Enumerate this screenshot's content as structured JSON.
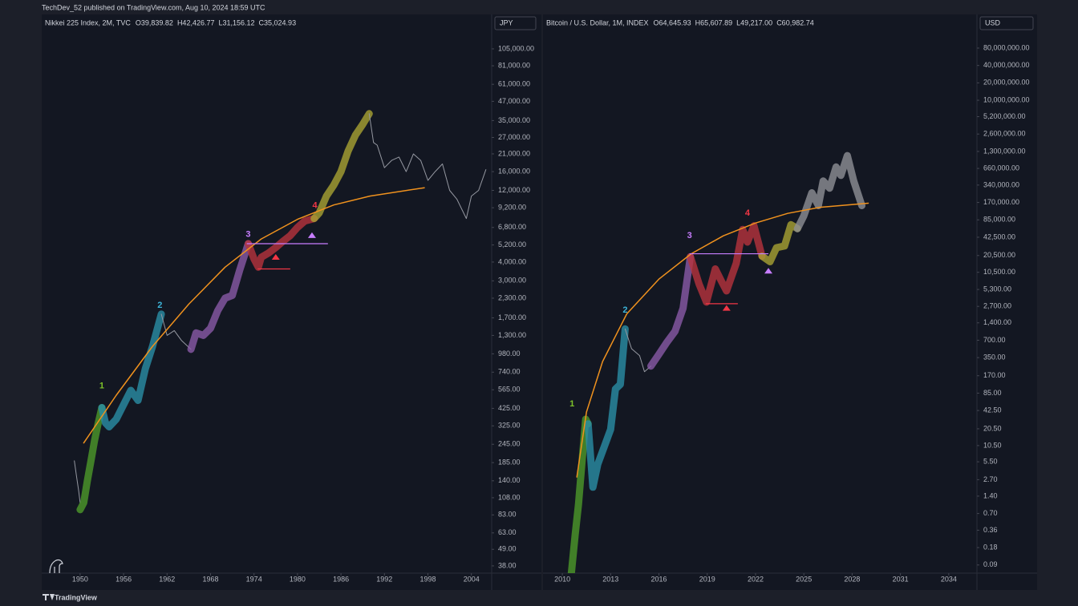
{
  "header": "TechDev_52 published on TradingView.com, Aug 10, 2024 18:59 UTC",
  "footer": "TradingView",
  "chart_data": [
    {
      "type": "line",
      "title": "Nikkei 225 Index, 2M, TVC",
      "ohlc": [
        "O39,839.82",
        "H42,426.77",
        "L31,156.12",
        "C35,024.93"
      ],
      "currency": "JPY",
      "log_scale": true,
      "xlim": [
        1944.7,
        2006.8
      ],
      "xticks": [
        1950,
        1956,
        1962,
        1968,
        1974,
        1980,
        1986,
        1992,
        1998,
        2004
      ],
      "ylim": [
        34,
        178000
      ],
      "yticks": [
        {
          "value": 105000,
          "label": "105,000.00"
        },
        {
          "value": 81000,
          "label": "81,000.00"
        },
        {
          "value": 61000,
          "label": "61,000.00"
        },
        {
          "value": 47000,
          "label": "47,000.00"
        },
        {
          "value": 35000,
          "label": "35,000.00"
        },
        {
          "value": 27000,
          "label": "27,000.00"
        },
        {
          "value": 21000,
          "label": "21,000.00"
        },
        {
          "value": 16000,
          "label": "16,000.00"
        },
        {
          "value": 12000,
          "label": "12,000.00"
        },
        {
          "value": 9200,
          "label": "9,200.00"
        },
        {
          "value": 6800,
          "label": "6,800.00"
        },
        {
          "value": 5200,
          "label": "5,200.00"
        },
        {
          "value": 4000,
          "label": "4,000.00"
        },
        {
          "value": 3000,
          "label": "3,000.00"
        },
        {
          "value": 2300,
          "label": "2,300.00"
        },
        {
          "value": 1700,
          "label": "1,700.00"
        },
        {
          "value": 1300,
          "label": "1,300.00"
        },
        {
          "value": 980,
          "label": "980.00"
        },
        {
          "value": 740,
          "label": "740.00"
        },
        {
          "value": 565,
          "label": "565.00"
        },
        {
          "value": 425,
          "label": "425.00"
        },
        {
          "value": 325,
          "label": "325.00"
        },
        {
          "value": 245,
          "label": "245.00"
        },
        {
          "value": 185,
          "label": "185.00"
        },
        {
          "value": 140,
          "label": "140.00"
        },
        {
          "value": 108,
          "label": "108.00"
        },
        {
          "value": 83,
          "label": "83.00"
        },
        {
          "value": 63,
          "label": "63.00"
        },
        {
          "value": 49,
          "label": "49.00"
        },
        {
          "value": 38,
          "label": "38.00"
        }
      ],
      "series": [
        {
          "color": "#9598a1",
          "line_width": 1,
          "x": [
            1949.2,
            1949.5,
            1949.8,
            1950.0
          ],
          "values": [
            190,
            150,
            120,
            100
          ]
        },
        {
          "color": "#4e9a2a",
          "line_width": 9,
          "x": [
            1950.0,
            1950.5,
            1951,
            1951.5,
            1952,
            1952.5,
            1953
          ],
          "values": [
            90,
            100,
            140,
            190,
            260,
            340,
            430
          ]
        },
        {
          "color": "#2a8fa6",
          "line_width": 9,
          "x": [
            1953,
            1953.5,
            1954,
            1955,
            1956,
            1957,
            1958,
            1959,
            1960,
            1961.2
          ],
          "values": [
            430,
            340,
            320,
            360,
            450,
            560,
            480,
            780,
            1100,
            1800
          ]
        },
        {
          "color": "#9598a1",
          "line_width": 1,
          "x": [
            1961.2,
            1962,
            1963,
            1964,
            1965.3
          ],
          "values": [
            1800,
            1300,
            1400,
            1200,
            1050
          ]
        },
        {
          "color": "#8a5aa8",
          "line_width": 9,
          "x": [
            1965.3,
            1966,
            1967,
            1968,
            1969,
            1970,
            1971,
            1972,
            1973.2
          ],
          "values": [
            1050,
            1350,
            1300,
            1450,
            1900,
            2300,
            2400,
            3500,
            5300
          ]
        },
        {
          "color": "#b8333d",
          "line_width": 9,
          "x": [
            1973.2,
            1974,
            1974.6,
            1975,
            1976,
            1977,
            1978,
            1979,
            1980,
            1981,
            1982.3
          ],
          "values": [
            5300,
            4200,
            3700,
            4300,
            4600,
            5000,
            5500,
            6000,
            6800,
            7500,
            7800
          ]
        },
        {
          "color": "#a9a233",
          "line_width": 9,
          "x": [
            1982.3,
            1983,
            1984,
            1985,
            1986,
            1987,
            1988,
            1989,
            1989.9
          ],
          "values": [
            7800,
            8500,
            11000,
            13000,
            16000,
            22000,
            28000,
            33000,
            38900
          ]
        },
        {
          "color": "#9598a1",
          "line_width": 1,
          "x": [
            1989.9,
            1990.5,
            1991,
            1992,
            1993,
            1994,
            1995,
            1996,
            1997,
            1998,
            1999,
            2000,
            2001,
            2002,
            2003.3,
            2004,
            2005,
            2006
          ],
          "values": [
            38900,
            25000,
            24000,
            17000,
            19000,
            20000,
            16000,
            21000,
            19000,
            14000,
            16000,
            18000,
            12000,
            10500,
            7800,
            11000,
            12000,
            16500
          ]
        },
        {
          "color": "#f0921e",
          "line_width": 1.5,
          "x": [
            1950.5,
            1955,
            1960,
            1965,
            1970,
            1975,
            1980,
            1985,
            1990,
            1997.5
          ],
          "values": [
            250,
            520,
            1100,
            2100,
            3700,
            5700,
            7700,
            9600,
            11000,
            12500
          ]
        }
      ],
      "hlines": [
        {
          "value": 5300,
          "x": [
            1973,
            1984.2
          ],
          "color": "#c77dff"
        },
        {
          "value": 3600,
          "x": [
            1974.5,
            1979
          ],
          "color": "#f23645"
        }
      ],
      "markers": [
        {
          "x": 1977,
          "y": 4300,
          "color": "#f23645"
        },
        {
          "x": 1982,
          "y": 6000,
          "color": "#c77dff"
        }
      ],
      "annotations": [
        {
          "text": "1",
          "x": 1953,
          "y": 600,
          "color": "#7ec22a"
        },
        {
          "text": "2",
          "x": 1961,
          "y": 2050,
          "color": "#3cb4d8"
        },
        {
          "text": "3",
          "x": 1973.2,
          "y": 6100,
          "color": "#c77dff"
        },
        {
          "text": "4",
          "x": 1982.4,
          "y": 9500,
          "color": "#f23645"
        }
      ]
    },
    {
      "type": "line",
      "title": "Bitcoin / U.S. Dollar, 1M, INDEX",
      "ohlc": [
        "O64,645.93",
        "H65,607.89",
        "L49,217.00",
        "C60,982.74"
      ],
      "currency": "USD",
      "log_scale": true,
      "xlim": [
        2008.8,
        2035.75
      ],
      "xticks": [
        2010,
        2013,
        2016,
        2019,
        2022,
        2025,
        2028,
        2031,
        2034
      ],
      "ylim": [
        0.065,
        306000000
      ],
      "yticks": [
        {
          "value": 80000000,
          "label": "80,000,000.00"
        },
        {
          "value": 40000000,
          "label": "40,000,000.00"
        },
        {
          "value": 20000000,
          "label": "20,000,000.00"
        },
        {
          "value": 10000000,
          "label": "10,000,000.00"
        },
        {
          "value": 5200000,
          "label": "5,200,000.00"
        },
        {
          "value": 2600000,
          "label": "2,600,000.00"
        },
        {
          "value": 1300000,
          "label": "1,300,000.00"
        },
        {
          "value": 660000,
          "label": "660,000.00"
        },
        {
          "value": 340000,
          "label": "340,000.00"
        },
        {
          "value": 170000,
          "label": "170,000.00"
        },
        {
          "value": 85000,
          "label": "85,000.00"
        },
        {
          "value": 42500,
          "label": "42,500.00"
        },
        {
          "value": 20500,
          "label": "20,500.00"
        },
        {
          "value": 10500,
          "label": "10,500.00"
        },
        {
          "value": 5300,
          "label": "5,300.00"
        },
        {
          "value": 2700,
          "label": "2,700.00"
        },
        {
          "value": 1400,
          "label": "1,400.00"
        },
        {
          "value": 700,
          "label": "700.00"
        },
        {
          "value": 350,
          "label": "350.00"
        },
        {
          "value": 170,
          "label": "170.00"
        },
        {
          "value": 85,
          "label": "85.00"
        },
        {
          "value": 42.5,
          "label": "42.50"
        },
        {
          "value": 20.5,
          "label": "20.50"
        },
        {
          "value": 10.5,
          "label": "10.50"
        },
        {
          "value": 5.5,
          "label": "5.50"
        },
        {
          "value": 2.7,
          "label": "2.70"
        },
        {
          "value": 1.4,
          "label": "1.40"
        },
        {
          "value": 0.7,
          "label": "0.70"
        },
        {
          "value": 0.36,
          "label": "0.36"
        },
        {
          "value": 0.18,
          "label": "0.18"
        },
        {
          "value": 0.09,
          "label": "0.09"
        }
      ],
      "series": [
        {
          "color": "#4e9a2a",
          "line_width": 9,
          "x": [
            2010.55,
            2010.8,
            2011,
            2011.3,
            2011.45,
            2011.6
          ],
          "values": [
            0.06,
            0.3,
            1,
            10,
            30,
            25
          ]
        },
        {
          "color": "#2a8fa6",
          "line_width": 9,
          "x": [
            2011.6,
            2011.9,
            2012.2,
            2012.6,
            2013,
            2013.3,
            2013.6,
            2013.9
          ],
          "values": [
            25,
            2,
            5,
            10,
            20,
            100,
            120,
            1100
          ]
        },
        {
          "color": "#9598a1",
          "line_width": 1,
          "x": [
            2013.9,
            2014.3,
            2014.8,
            2015.1,
            2015.5
          ],
          "values": [
            1100,
            500,
            380,
            200,
            250
          ]
        },
        {
          "color": "#8a5aa8",
          "line_width": 9,
          "x": [
            2015.5,
            2016,
            2016.5,
            2017,
            2017.5,
            2017.95
          ],
          "values": [
            250,
            400,
            650,
            1000,
            2500,
            19500
          ]
        },
        {
          "color": "#b8333d",
          "line_width": 9,
          "x": [
            2017.95,
            2018.5,
            2018.95,
            2019.5,
            2019.9,
            2020.2,
            2020.8,
            2021.2,
            2021.5,
            2021.9,
            2022.4
          ],
          "values": [
            19500,
            6500,
            3200,
            12000,
            7200,
            5000,
            15000,
            58000,
            35000,
            67000,
            20000
          ]
        },
        {
          "color": "#a9a233",
          "line_width": 9,
          "x": [
            2022.4,
            2022.9,
            2023.3,
            2023.8,
            2024.2,
            2024.6
          ],
          "values": [
            20000,
            16000,
            28000,
            30000,
            70000,
            60000
          ]
        },
        {
          "color": "#8f9096",
          "line_width": 9,
          "x": [
            2024.6,
            2025,
            2025.5,
            2025.9,
            2026.2,
            2026.6,
            2027,
            2027.3,
            2027.7,
            2028.1,
            2028.6
          ],
          "values": [
            60000,
            100000,
            250000,
            150000,
            400000,
            300000,
            700000,
            500000,
            1100000,
            400000,
            150000
          ]
        },
        {
          "color": "#f0921e",
          "line_width": 1.5,
          "x": [
            2010.9,
            2011.5,
            2012.5,
            2014,
            2016,
            2018,
            2020,
            2022,
            2024,
            2026,
            2029
          ],
          "values": [
            3,
            40,
            300,
            2000,
            8000,
            22000,
            45000,
            75000,
            110000,
            140000,
            165000
          ]
        }
      ],
      "hlines": [
        {
          "value": 22000,
          "x": [
            2017.9,
            2022.8
          ],
          "color": "#c77dff"
        },
        {
          "value": 3000,
          "x": [
            2018.9,
            2020.9
          ],
          "color": "#f23645"
        }
      ],
      "markers": [
        {
          "x": 2020.2,
          "y": 2500,
          "color": "#f23645"
        },
        {
          "x": 2022.8,
          "y": 11000,
          "color": "#c77dff"
        }
      ],
      "annotations": [
        {
          "text": "1",
          "x": 2010.6,
          "y": 55,
          "color": "#7ec22a"
        },
        {
          "text": "2",
          "x": 2013.9,
          "y": 2300,
          "color": "#3cb4d8"
        },
        {
          "text": "3",
          "x": 2017.9,
          "y": 45000,
          "color": "#c77dff"
        },
        {
          "text": "4",
          "x": 2021.5,
          "y": 110000,
          "color": "#f23645"
        }
      ]
    }
  ]
}
